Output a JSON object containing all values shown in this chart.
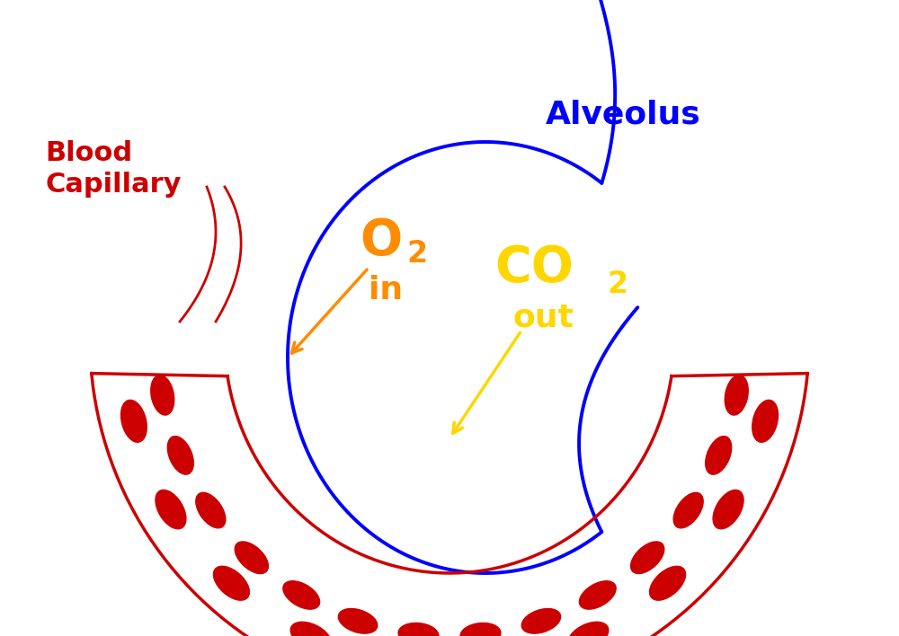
{
  "background_color": "none",
  "alveolus_label": "Alveolus",
  "alveolus_label_color": "#0000FF",
  "blood_capillary_label": "Blood\nCapillary",
  "blood_capillary_label_color": "#CC0000",
  "o2_label": "O",
  "o2_sub": "2",
  "o2_in": "in",
  "o2_color": "#FF8C00",
  "co2_label": "CO",
  "co2_sub": "2",
  "co2_out": "out",
  "co2_color": "#FFD700",
  "rbc_color": "#CC0000",
  "capillary_color": "#CC0000",
  "alveolus_color": "#0000FF",
  "arrow_o2_color": "#FF8C00",
  "arrow_co2_color": "#FFD700"
}
